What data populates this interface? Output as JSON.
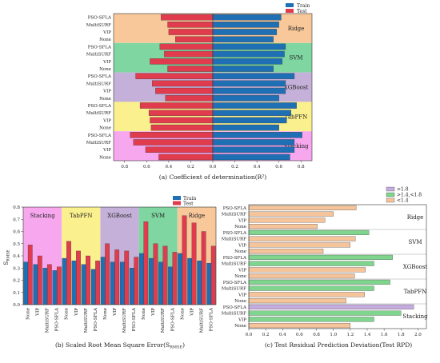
{
  "colors": {
    "train": "#1f6fb4",
    "test": "#e03c4e",
    "ridge": "#f8c89a",
    "svm": "#7fd6a0",
    "xgboost": "#c4b0d8",
    "tabpfn": "#fbf08e",
    "stacking": "#f7a7ee",
    "rpd_gt18": "#c6acde",
    "rpd_mid": "#7fd48e",
    "rpd_lt14": "#f5c49b"
  },
  "chart_data": [
    {
      "type": "bar",
      "orientation": "horizontal-diverging",
      "caption": "(a) Coefficient of determination(R²)",
      "x_tick_labels": [
        "0.8",
        "0.6",
        "0.4",
        "0.2",
        "0.0",
        "0.2",
        "0.4",
        "0.6",
        "0.8"
      ],
      "xlim": [
        -0.9,
        0.9
      ],
      "legend": [
        "Train",
        "Test"
      ],
      "groups": [
        {
          "name": "Ridge",
          "labels": [
            "PSO-SFLA",
            "MultiSURF",
            "VIP",
            "None"
          ],
          "train": [
            0.62,
            0.6,
            0.58,
            0.55
          ],
          "test": [
            0.47,
            0.41,
            0.4,
            0.34
          ]
        },
        {
          "name": "SVM",
          "labels": [
            "PSO-SFLA",
            "MultiSURF",
            "VIP",
            "None"
          ],
          "train": [
            0.66,
            0.65,
            0.63,
            0.55
          ],
          "test": [
            0.48,
            0.44,
            0.57,
            0.41
          ]
        },
        {
          "name": "XGBoost",
          "labels": [
            "PSO-SFLA",
            "MultiSURF",
            "VIP",
            "None"
          ],
          "train": [
            0.74,
            0.66,
            0.66,
            0.6
          ],
          "test": [
            0.7,
            0.55,
            0.52,
            0.43
          ]
        },
        {
          "name": "TabPFN",
          "labels": [
            "PSO-SFLA",
            "MultiSURF",
            "VIP",
            "None"
          ],
          "train": [
            0.76,
            0.71,
            0.67,
            0.6
          ],
          "test": [
            0.66,
            0.58,
            0.57,
            0.56
          ]
        },
        {
          "name": "Stacking",
          "labels": [
            "PSO-SFLA",
            "MultiSURF",
            "VIP",
            "None"
          ],
          "train": [
            0.81,
            0.74,
            0.74,
            0.7
          ],
          "test": [
            0.75,
            0.72,
            0.61,
            0.49
          ]
        }
      ]
    },
    {
      "type": "bar",
      "caption": "(b) Scaled Root Mean Square Error(S",
      "caption_sub": "RMSE",
      "caption_end": ")",
      "ylabel": "S",
      "ylabel_sub": "RMSE",
      "ylim": [
        0,
        0.8
      ],
      "y_ticks": [
        "0.0",
        "0.1",
        "0.2",
        "0.3",
        "0.4",
        "0.5",
        "0.6",
        "0.7",
        "0.8"
      ],
      "legend": [
        "Train",
        "Test"
      ],
      "x_labels": [
        "None",
        "VIP",
        "MultiSURF",
        "PSO-SFLA"
      ],
      "groups": [
        {
          "name": "Stacking",
          "train": [
            0.35,
            0.33,
            0.3,
            0.28
          ],
          "test": [
            0.49,
            0.4,
            0.33,
            0.31
          ]
        },
        {
          "name": "TabPFN",
          "train": [
            0.38,
            0.36,
            0.33,
            0.29
          ],
          "test": [
            0.52,
            0.44,
            0.4,
            0.36
          ]
        },
        {
          "name": "XGBoost",
          "train": [
            0.39,
            0.35,
            0.35,
            0.3
          ],
          "test": [
            0.5,
            0.45,
            0.44,
            0.39
          ]
        },
        {
          "name": "SVM",
          "train": [
            0.42,
            0.38,
            0.35,
            0.31
          ],
          "test": [
            0.68,
            0.5,
            0.48,
            0.43
          ]
        },
        {
          "name": "Ridge",
          "train": [
            0.42,
            0.38,
            0.36,
            0.34
          ],
          "test": [
            0.73,
            0.67,
            0.6,
            0.48
          ]
        }
      ]
    },
    {
      "type": "bar",
      "orientation": "horizontal",
      "caption": "(c) Test Residual Prediction Deviation(Test RPD)",
      "xlim": [
        0,
        2.1
      ],
      "x_ticks": [
        "0.0",
        "0.2",
        "0.4",
        "0.6",
        "0.8",
        "1.0",
        "1.2",
        "1.4",
        "1.6",
        "1.8",
        "2.0"
      ],
      "legend": [
        ">1.8",
        ">1.4,<1.8",
        "<1.4"
      ],
      "groups": [
        {
          "name": "Ridge",
          "labels": [
            "PSO-SFLA",
            "MultiSURF",
            "VIP",
            "None"
          ],
          "values": [
            1.27,
            1.0,
            0.9,
            0.81
          ]
        },
        {
          "name": "SVM",
          "labels": [
            "PSO-SFLA",
            "MultiSURF",
            "VIP",
            "None"
          ],
          "values": [
            1.42,
            1.26,
            1.2,
            0.88
          ]
        },
        {
          "name": "XGBoost",
          "labels": [
            "PSO-SFLA",
            "MultiSURF",
            "VIP",
            "None"
          ],
          "values": [
            1.7,
            1.48,
            1.38,
            1.25
          ]
        },
        {
          "name": "TabPFN",
          "labels": [
            "PSO-SFLA",
            "MultiSURF",
            "VIP",
            "None"
          ],
          "values": [
            1.67,
            1.48,
            1.37,
            1.15
          ]
        },
        {
          "name": "Stacking",
          "labels": [
            "PSO-SFLA",
            "MultiSURF",
            "VIP",
            "None"
          ],
          "values": [
            1.95,
            1.8,
            1.48,
            1.2
          ]
        }
      ]
    }
  ]
}
